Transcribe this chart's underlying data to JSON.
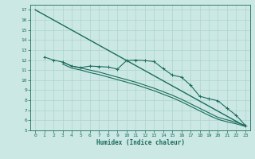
{
  "bg_color": "#cce8e4",
  "grid_color": "#aad4cc",
  "line_color": "#1a6b5a",
  "xlabel": "Humidex (Indice chaleur)",
  "xlim": [
    -0.5,
    23.5
  ],
  "ylim": [
    5,
    17.5
  ],
  "yticks": [
    5,
    6,
    7,
    8,
    9,
    10,
    11,
    12,
    13,
    14,
    15,
    16,
    17
  ],
  "xticks": [
    0,
    1,
    2,
    3,
    4,
    5,
    6,
    7,
    8,
    9,
    10,
    11,
    12,
    13,
    14,
    15,
    16,
    17,
    18,
    19,
    20,
    21,
    22,
    23
  ],
  "series": [
    {
      "x": [
        0,
        23
      ],
      "y": [
        17.0,
        5.4
      ],
      "marker": null,
      "lw": 1.0
    },
    {
      "x": [
        1,
        2,
        3,
        4,
        5,
        6,
        7,
        8,
        9,
        10,
        11,
        12,
        13,
        14,
        15,
        16,
        17,
        18,
        19,
        20,
        21,
        22,
        23
      ],
      "y": [
        12.3,
        12.0,
        11.8,
        11.4,
        11.25,
        11.4,
        11.35,
        11.3,
        11.1,
        11.95,
        12.0,
        11.95,
        11.85,
        11.15,
        10.5,
        10.3,
        9.5,
        8.4,
        8.15,
        7.95,
        7.2,
        6.5,
        5.5
      ],
      "marker": "+",
      "lw": 0.8
    },
    {
      "x": [
        3,
        4,
        5,
        6,
        7,
        8,
        9,
        10,
        11,
        12,
        13,
        14,
        15,
        16,
        17,
        18,
        19,
        20,
        21,
        22,
        23
      ],
      "y": [
        11.8,
        11.4,
        11.2,
        11.0,
        10.8,
        10.55,
        10.3,
        10.05,
        9.8,
        9.5,
        9.2,
        8.85,
        8.5,
        8.1,
        7.65,
        7.2,
        6.75,
        6.3,
        6.05,
        5.8,
        5.5
      ],
      "marker": null,
      "lw": 0.8
    },
    {
      "x": [
        3,
        4,
        5,
        6,
        7,
        8,
        9,
        10,
        11,
        12,
        13,
        14,
        15,
        16,
        17,
        18,
        19,
        20,
        21,
        22,
        23
      ],
      "y": [
        11.6,
        11.2,
        11.0,
        10.75,
        10.55,
        10.3,
        10.05,
        9.8,
        9.55,
        9.25,
        8.95,
        8.6,
        8.25,
        7.85,
        7.4,
        6.95,
        6.5,
        6.1,
        5.85,
        5.65,
        5.4
      ],
      "marker": null,
      "lw": 0.8
    }
  ]
}
